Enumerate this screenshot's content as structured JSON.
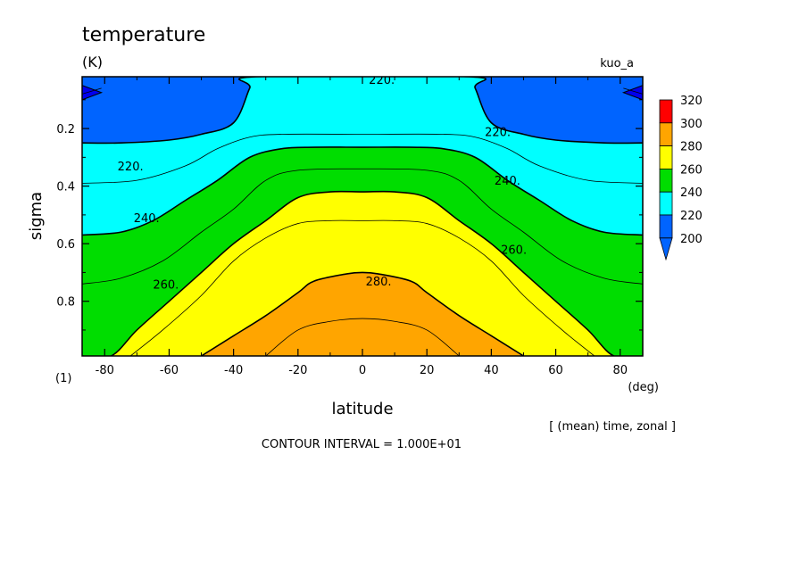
{
  "chart_data": {
    "type": "contour",
    "title": "temperature",
    "units": "(K)",
    "experiment": "kuo_a",
    "xlabel": "latitude",
    "xunits": "(deg)",
    "ylabel": "sigma",
    "yunits": "(1)",
    "averaging_note": "[ (mean) time, zonal ]",
    "contour_interval_text": "CONTOUR INTERVAL = 1.000E+01",
    "xlim": [
      -87,
      87
    ],
    "ylim_top_to_bottom": [
      0.02,
      0.99
    ],
    "x_ticks": [
      "-80",
      "-60",
      "-40",
      "-20",
      "0",
      "20",
      "40",
      "60",
      "80"
    ],
    "x_tick_values": [
      -80,
      -60,
      -40,
      -20,
      0,
      20,
      40,
      60,
      80
    ],
    "y_ticks": [
      "0.2",
      "0.4",
      "0.6",
      "0.8"
    ],
    "y_tick_values": [
      0.2,
      0.4,
      0.6,
      0.8
    ],
    "colorbar": {
      "labels": [
        "320",
        "300",
        "280",
        "260",
        "240",
        "220",
        "200"
      ],
      "levels": [
        320,
        300,
        280,
        260,
        240,
        220,
        200
      ],
      "colors": [
        "#ff0000",
        "#ffa500",
        "#ffff00",
        "#00dd00",
        "#00ffff",
        "#0064ff",
        "#0000ee"
      ]
    },
    "contour_labels": [
      {
        "text": "220.",
        "lat": 6,
        "sigma": 0.03
      },
      {
        "text": "220.",
        "lat": 42,
        "sigma": 0.21
      },
      {
        "text": "220.",
        "lat": -72,
        "sigma": 0.33
      },
      {
        "text": "240.",
        "lat": 45,
        "sigma": 0.38
      },
      {
        "text": "240.",
        "lat": -67,
        "sigma": 0.51
      },
      {
        "text": "260.",
        "lat": 47,
        "sigma": 0.62
      },
      {
        "text": "260.",
        "lat": -61,
        "sigma": 0.74
      },
      {
        "text": "280.",
        "lat": 5,
        "sigma": 0.73
      }
    ],
    "bands": [
      {
        "name": "below-200",
        "color": "#0000ee",
        "polygons": [
          [
            [
              -87,
              0.05
            ],
            [
              -81,
              0.075
            ],
            [
              -87,
              0.1
            ]
          ],
          [
            [
              87,
              0.05
            ],
            [
              81,
              0.075
            ],
            [
              87,
              0.1
            ]
          ]
        ]
      },
      {
        "name": "200-220",
        "color": "#0064ff",
        "region": "upper",
        "boundary": [
          [
            -87,
            0.25
          ],
          [
            -75,
            0.25
          ],
          [
            -60,
            0.24
          ],
          [
            -50,
            0.22
          ],
          [
            -40,
            0.18
          ],
          [
            -35,
            0.06
          ],
          [
            -33,
            0.02
          ],
          [
            33,
            0.02
          ],
          [
            35,
            0.06
          ],
          [
            40,
            0.18
          ],
          [
            50,
            0.22
          ],
          [
            60,
            0.24
          ],
          [
            75,
            0.25
          ],
          [
            87,
            0.25
          ]
        ]
      },
      {
        "name": "220-240",
        "color": "#00ffff",
        "region": "upper",
        "boundary": [
          [
            -87,
            0.57
          ],
          [
            -75,
            0.56
          ],
          [
            -65,
            0.52
          ],
          [
            -55,
            0.45
          ],
          [
            -45,
            0.38
          ],
          [
            -35,
            0.3
          ],
          [
            -25,
            0.27
          ],
          [
            -15,
            0.265
          ],
          [
            0,
            0.265
          ],
          [
            15,
            0.265
          ],
          [
            25,
            0.27
          ],
          [
            35,
            0.3
          ],
          [
            45,
            0.38
          ],
          [
            55,
            0.45
          ],
          [
            65,
            0.52
          ],
          [
            75,
            0.56
          ],
          [
            87,
            0.57
          ]
        ]
      },
      {
        "name": "240-260",
        "color": "#00dd00",
        "region": "upper",
        "boundary": [
          [
            -87,
            0.99
          ],
          [
            -78,
            0.99
          ],
          [
            -70,
            0.9
          ],
          [
            -60,
            0.8
          ],
          [
            -50,
            0.7
          ],
          [
            -40,
            0.6
          ],
          [
            -30,
            0.52
          ],
          [
            -20,
            0.44
          ],
          [
            -10,
            0.42
          ],
          [
            0,
            0.42
          ],
          [
            10,
            0.42
          ],
          [
            20,
            0.44
          ],
          [
            30,
            0.52
          ],
          [
            40,
            0.6
          ],
          [
            50,
            0.7
          ],
          [
            60,
            0.8
          ],
          [
            70,
            0.9
          ],
          [
            78,
            0.99
          ],
          [
            87,
            0.99
          ]
        ]
      },
      {
        "name": "260-280",
        "color": "#ffff00",
        "region": "upper",
        "boundary": [
          [
            -50,
            0.99
          ],
          [
            -40,
            0.92
          ],
          [
            -30,
            0.85
          ],
          [
            -20,
            0.77
          ],
          [
            -15,
            0.73
          ],
          [
            -5,
            0.705
          ],
          [
            0,
            0.7
          ],
          [
            5,
            0.705
          ],
          [
            15,
            0.73
          ],
          [
            20,
            0.77
          ],
          [
            30,
            0.85
          ],
          [
            40,
            0.92
          ],
          [
            50,
            0.99
          ]
        ]
      },
      {
        "name": "280-300",
        "color": "#ffa500",
        "region": "remainder"
      }
    ],
    "thin_contours": [
      [
        [
          -87,
          0.08
        ],
        [
          -81,
          0.06
        ]
      ],
      [
        [
          81,
          0.06
        ],
        [
          87,
          0.08
        ]
      ],
      [
        [
          -87,
          0.39
        ],
        [
          -70,
          0.38
        ],
        [
          -55,
          0.33
        ],
        [
          -45,
          0.27
        ],
        [
          -35,
          0.23
        ],
        [
          -25,
          0.22
        ],
        [
          0,
          0.22
        ],
        [
          25,
          0.22
        ],
        [
          35,
          0.23
        ],
        [
          45,
          0.27
        ],
        [
          55,
          0.33
        ],
        [
          70,
          0.38
        ],
        [
          87,
          0.39
        ]
      ],
      [
        [
          -87,
          0.74
        ],
        [
          -75,
          0.72
        ],
        [
          -62,
          0.66
        ],
        [
          -50,
          0.56
        ],
        [
          -40,
          0.48
        ],
        [
          -30,
          0.38
        ],
        [
          -20,
          0.345
        ],
        [
          0,
          0.34
        ],
        [
          20,
          0.345
        ],
        [
          30,
          0.38
        ],
        [
          40,
          0.48
        ],
        [
          50,
          0.56
        ],
        [
          62,
          0.66
        ],
        [
          75,
          0.72
        ],
        [
          87,
          0.74
        ]
      ],
      [
        [
          -72,
          0.99
        ],
        [
          -62,
          0.9
        ],
        [
          -50,
          0.78
        ],
        [
          -40,
          0.66
        ],
        [
          -30,
          0.58
        ],
        [
          -20,
          0.53
        ],
        [
          -10,
          0.52
        ],
        [
          0,
          0.52
        ],
        [
          10,
          0.52
        ],
        [
          20,
          0.53
        ],
        [
          30,
          0.58
        ],
        [
          40,
          0.66
        ],
        [
          50,
          0.78
        ],
        [
          62,
          0.9
        ],
        [
          72,
          0.99
        ]
      ],
      [
        [
          -30,
          0.99
        ],
        [
          -20,
          0.9
        ],
        [
          -10,
          0.87
        ],
        [
          0,
          0.86
        ],
        [
          10,
          0.87
        ],
        [
          20,
          0.9
        ],
        [
          30,
          0.99
        ]
      ]
    ]
  }
}
